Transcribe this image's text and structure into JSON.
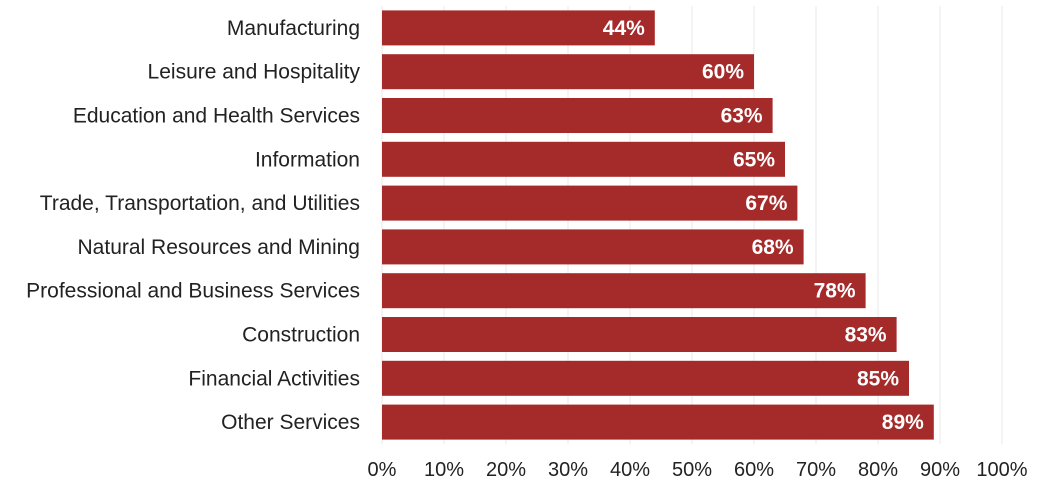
{
  "chart_data": {
    "type": "bar",
    "orientation": "horizontal",
    "categories": [
      "Manufacturing",
      "Leisure and Hospitality",
      "Education and Health Services",
      "Information",
      "Trade, Transportation, and Utilities",
      "Natural Resources and Mining",
      "Professional and Business Services",
      "Construction",
      "Financial Activities",
      "Other Services"
    ],
    "values": [
      44,
      60,
      63,
      65,
      67,
      68,
      78,
      83,
      85,
      89
    ],
    "data_labels": [
      "44%",
      "60%",
      "63%",
      "65%",
      "67%",
      "68%",
      "78%",
      "83%",
      "85%",
      "89%"
    ],
    "x_ticks": [
      "0%",
      "10%",
      "20%",
      "30%",
      "40%",
      "50%",
      "60%",
      "70%",
      "80%",
      "90%",
      "100%"
    ],
    "xlim": [
      0,
      100
    ],
    "grid": true,
    "legend": "none",
    "bar_color": "#a52a2a",
    "title": "",
    "xlabel": "",
    "ylabel": ""
  }
}
